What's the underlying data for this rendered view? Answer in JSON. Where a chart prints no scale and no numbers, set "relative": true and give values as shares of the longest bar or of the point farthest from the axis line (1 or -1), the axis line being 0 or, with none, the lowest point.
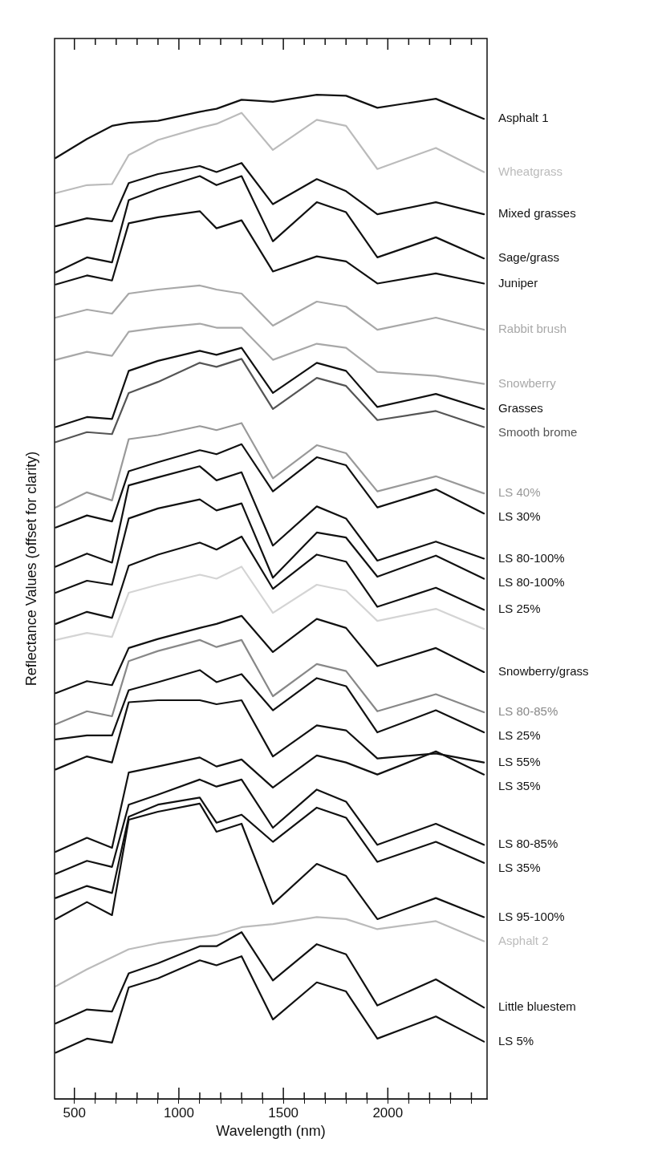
{
  "chart_data": {
    "type": "line",
    "xlabel": "Wavelength (nm)",
    "ylabel": "Reflectance Values (offset for clarity)",
    "relative": true,
    "legend": false,
    "grid": false,
    "marker": "none",
    "line_style": "solid",
    "xlim": [
      405,
      2475
    ],
    "xticks": [
      500,
      {
        "value": 600,
        "label": null
      },
      {
        "value": 700,
        "label": null
      },
      {
        "value": 800,
        "label": null
      },
      {
        "value": 900,
        "label": null
      },
      1000,
      {
        "value": 1100,
        "label": null
      },
      {
        "value": 1200,
        "label": null
      },
      {
        "value": 1300,
        "label": null
      },
      {
        "value": 1400,
        "label": null
      },
      1500,
      {
        "value": 1600,
        "label": null
      },
      {
        "value": 1700,
        "label": null
      },
      {
        "value": 1800,
        "label": null
      },
      {
        "value": 1900,
        "label": null
      },
      2000,
      {
        "value": 2100,
        "label": null
      },
      {
        "value": 2200,
        "label": null
      },
      {
        "value": 2300,
        "label": null
      },
      {
        "value": 2400,
        "label": null
      }
    ],
    "x": [
      410,
      560,
      680,
      760,
      900,
      1100,
      1180,
      1300,
      1450,
      1660,
      1800,
      1950,
      2230,
      2460
    ],
    "series": [
      {
        "name": "Asphalt 1",
        "color": "#111111",
        "values": [
          0.937,
          0.956,
          0.969,
          0.972,
          0.974,
          0.983,
          0.986,
          0.995,
          0.993,
          1,
          0.999,
          0.987,
          0.996,
          0.976
        ]
      },
      {
        "name": "Wheatgrass",
        "color": "#bbbbbb",
        "values": [
          0.902,
          0.91,
          0.911,
          0.94,
          0.955,
          0.967,
          0.971,
          0.982,
          0.945,
          0.975,
          0.969,
          0.926,
          0.947,
          0.923
        ]
      },
      {
        "name": "Mixed grasses",
        "color": "#111111",
        "values": [
          0.869,
          0.877,
          0.874,
          0.912,
          0.921,
          0.929,
          0.923,
          0.932,
          0.891,
          0.916,
          0.904,
          0.881,
          0.893,
          0.881
        ]
      },
      {
        "name": "Sage/grass",
        "color": "#111111",
        "values": [
          0.823,
          0.838,
          0.833,
          0.895,
          0.906,
          0.919,
          0.91,
          0.919,
          0.854,
          0.893,
          0.883,
          0.838,
          0.858,
          0.837
        ]
      },
      {
        "name": "Juniper",
        "color": "#111111",
        "values": [
          0.811,
          0.82,
          0.815,
          0.872,
          0.878,
          0.884,
          0.867,
          0.875,
          0.824,
          0.839,
          0.834,
          0.812,
          0.822,
          0.812
        ]
      },
      {
        "name": "Rabbit brush",
        "color": "#a8a8a8",
        "values": [
          0.778,
          0.786,
          0.782,
          0.802,
          0.806,
          0.81,
          0.806,
          0.802,
          0.77,
          0.794,
          0.789,
          0.766,
          0.778,
          0.766
        ]
      },
      {
        "name": "Snowberry",
        "color": "#a8a8a8",
        "values": [
          0.736,
          0.744,
          0.74,
          0.764,
          0.768,
          0.772,
          0.768,
          0.768,
          0.736,
          0.752,
          0.748,
          0.724,
          0.72,
          0.712
        ]
      },
      {
        "name": "Grasses",
        "color": "#111111",
        "values": [
          0.669,
          0.679,
          0.677,
          0.725,
          0.735,
          0.745,
          0.741,
          0.748,
          0.703,
          0.733,
          0.725,
          0.689,
          0.702,
          0.687
        ]
      },
      {
        "name": "Smooth brome",
        "color": "#555555",
        "values": [
          0.654,
          0.664,
          0.662,
          0.703,
          0.714,
          0.733,
          0.729,
          0.737,
          0.687,
          0.718,
          0.71,
          0.676,
          0.685,
          0.669
        ]
      },
      {
        "name": "LS 40%",
        "color": "#999999",
        "values": [
          0.589,
          0.604,
          0.596,
          0.657,
          0.661,
          0.67,
          0.666,
          0.673,
          0.618,
          0.651,
          0.643,
          0.605,
          0.62,
          0.603
        ]
      },
      {
        "name": "LS 30%",
        "color": "#111111",
        "values": [
          0.569,
          0.581,
          0.575,
          0.625,
          0.634,
          0.646,
          0.642,
          0.652,
          0.605,
          0.639,
          0.631,
          0.589,
          0.607,
          0.583
        ]
      },
      {
        "name": "LS 80-100%",
        "color": "#111111",
        "values": [
          0.53,
          0.543,
          0.534,
          0.611,
          0.619,
          0.63,
          0.616,
          0.624,
          0.551,
          0.59,
          0.578,
          0.536,
          0.555,
          0.538
        ]
      },
      {
        "name": "LS 80-100%",
        "color": "#111111",
        "values": [
          0.504,
          0.516,
          0.512,
          0.578,
          0.588,
          0.597,
          0.586,
          0.593,
          0.519,
          0.564,
          0.559,
          0.52,
          0.541,
          0.518
        ]
      },
      {
        "name": "LS 25%",
        "color": "#111111",
        "values": [
          0.473,
          0.485,
          0.479,
          0.531,
          0.542,
          0.554,
          0.547,
          0.56,
          0.508,
          0.542,
          0.535,
          0.49,
          0.509,
          0.487
        ]
      },
      {
        "color": "#d4d4d4",
        "values": [
          0.457,
          0.464,
          0.46,
          0.504,
          0.512,
          0.522,
          0.518,
          0.53,
          0.484,
          0.512,
          0.506,
          0.476,
          0.488,
          0.468
        ]
      },
      {
        "name": "Snowberry/grass",
        "color": "#111111",
        "values": [
          0.404,
          0.416,
          0.412,
          0.449,
          0.458,
          0.469,
          0.473,
          0.481,
          0.445,
          0.478,
          0.469,
          0.431,
          0.449,
          0.425
        ]
      },
      {
        "name": "LS 80-85%",
        "color": "#888888",
        "values": [
          0.373,
          0.386,
          0.381,
          0.436,
          0.446,
          0.457,
          0.45,
          0.457,
          0.401,
          0.433,
          0.426,
          0.386,
          0.403,
          0.385
        ]
      },
      {
        "name": "LS 25%",
        "color": "#111111",
        "values": [
          0.358,
          0.362,
          0.362,
          0.407,
          0.415,
          0.427,
          0.415,
          0.423,
          0.387,
          0.419,
          0.411,
          0.365,
          0.387,
          0.365
        ]
      },
      {
        "name": "LS 55%",
        "color": "#111111",
        "values": [
          0.328,
          0.341,
          0.335,
          0.395,
          0.397,
          0.397,
          0.393,
          0.397,
          0.341,
          0.372,
          0.367,
          0.339,
          0.344,
          0.335
        ]
      },
      {
        "name": "LS 35%",
        "color": "#111111",
        "values": [
          0.246,
          0.26,
          0.25,
          0.325,
          0.331,
          0.34,
          0.331,
          0.338,
          0.31,
          0.342,
          0.335,
          0.323,
          0.346,
          0.323
        ]
      },
      {
        "name": "LS 80-85%",
        "color": "#111111",
        "values": [
          0.224,
          0.237,
          0.231,
          0.293,
          0.303,
          0.318,
          0.311,
          0.318,
          0.27,
          0.308,
          0.296,
          0.253,
          0.274,
          0.253
        ]
      },
      {
        "name": "LS 35%",
        "color": "#111111",
        "values": [
          0.2,
          0.212,
          0.205,
          0.281,
          0.293,
          0.3,
          0.275,
          0.283,
          0.256,
          0.29,
          0.28,
          0.236,
          0.256,
          0.235
        ]
      },
      {
        "name": "LS 95-100%",
        "color": "#111111",
        "values": [
          0.179,
          0.196,
          0.183,
          0.278,
          0.286,
          0.294,
          0.266,
          0.274,
          0.194,
          0.234,
          0.222,
          0.179,
          0.2,
          0.181
        ]
      },
      {
        "name": "Asphalt 2",
        "color": "#bbbbbb",
        "values": [
          0.112,
          0.129,
          0.141,
          0.149,
          0.155,
          0.161,
          0.163,
          0.171,
          0.174,
          0.181,
          0.179,
          0.169,
          0.177,
          0.157
        ]
      },
      {
        "name": "Little bluestem",
        "color": "#111111",
        "values": [
          0.075,
          0.089,
          0.087,
          0.125,
          0.135,
          0.152,
          0.152,
          0.166,
          0.118,
          0.154,
          0.144,
          0.093,
          0.119,
          0.091
        ]
      },
      {
        "name": "LS 5%",
        "color": "#111111",
        "values": [
          0.046,
          0.06,
          0.056,
          0.111,
          0.12,
          0.138,
          0.133,
          0.142,
          0.079,
          0.116,
          0.107,
          0.06,
          0.082,
          0.057
        ]
      }
    ]
  }
}
